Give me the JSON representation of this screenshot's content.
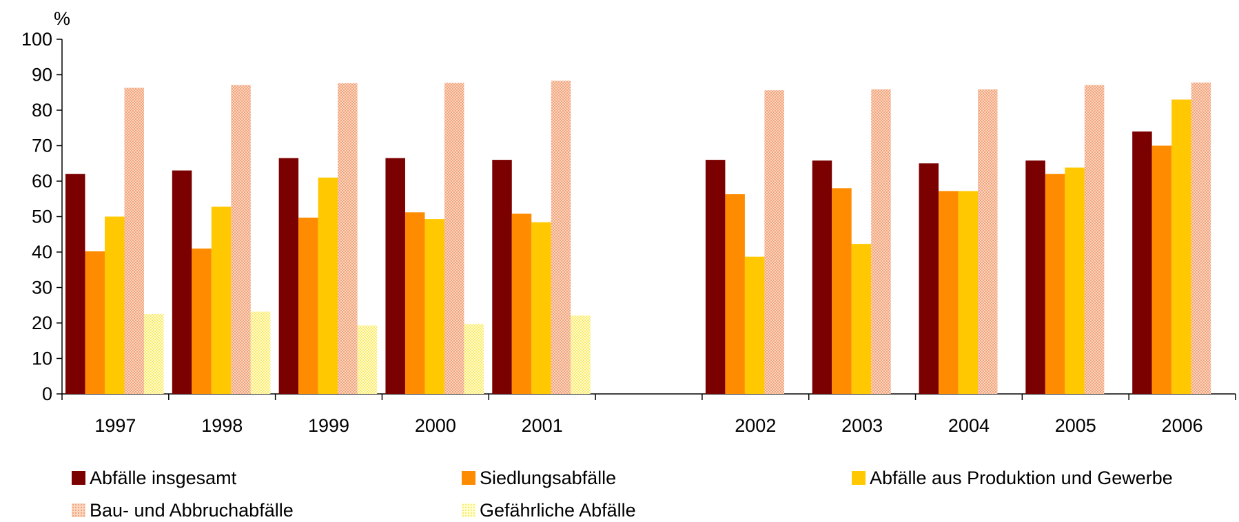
{
  "chart_data": {
    "type": "bar",
    "ylabel": "%",
    "ylim": [
      0,
      100
    ],
    "yticks": [
      "0",
      "10",
      "20",
      "30",
      "40",
      "50",
      "60",
      "70",
      "80",
      "90",
      "100"
    ],
    "categories": [
      "1997",
      "1998",
      "1999",
      "2000",
      "2001",
      "",
      "2002",
      "2003",
      "2004",
      "2005",
      "2006"
    ],
    "series": [
      {
        "name": "Abfälle insgesamt",
        "color": "#7b0000",
        "values": [
          62,
          63,
          66.5,
          66.5,
          66,
          null,
          66,
          65.8,
          65,
          65.8,
          74
        ]
      },
      {
        "name": "Siedlungsabfälle",
        "color": "#ff8c00",
        "values": [
          40.2,
          41,
          49.7,
          51.2,
          50.8,
          null,
          56.3,
          58,
          57.2,
          62,
          70
        ]
      },
      {
        "name": "Abfälle aus Produktion und Gewerbe",
        "color": "#ffc800",
        "values": [
          50,
          52.8,
          61,
          49.3,
          48.4,
          null,
          38.7,
          42.3,
          57.2,
          63.8,
          83
        ]
      },
      {
        "name": "Bau- und Abbruchabfälle",
        "color": "#fcc8a8",
        "pattern": "dots-peach",
        "values": [
          86.3,
          87.1,
          87.6,
          87.7,
          88.3,
          null,
          85.6,
          85.9,
          85.9,
          87.1,
          87.8
        ]
      },
      {
        "name": "Gefährliche Abfälle",
        "color": "#ffffa0",
        "pattern": "dots-yellow",
        "values": [
          22.5,
          23.2,
          19.3,
          19.7,
          22.1,
          null,
          null,
          null,
          null,
          null,
          null
        ]
      }
    ],
    "grid": false,
    "legend_position": "bottom"
  }
}
